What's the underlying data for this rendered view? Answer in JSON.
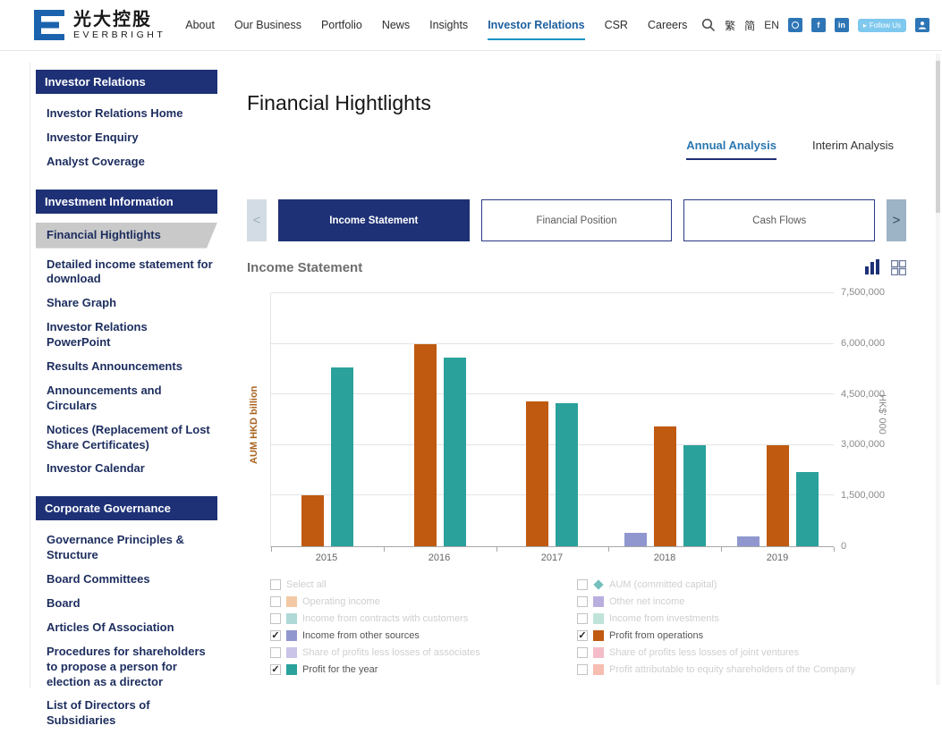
{
  "header": {
    "logo": {
      "cn": "光大控股",
      "en": "EVERBRIGHT"
    },
    "nav": [
      {
        "label": "About",
        "active": false
      },
      {
        "label": "Our Business",
        "active": false
      },
      {
        "label": "Portfolio",
        "active": false
      },
      {
        "label": "News",
        "active": false
      },
      {
        "label": "Insights",
        "active": false
      },
      {
        "label": "Investor Relations",
        "active": true
      },
      {
        "label": "CSR",
        "active": false
      },
      {
        "label": "Careers",
        "active": false
      }
    ],
    "lang": [
      "繁",
      "简",
      "EN"
    ],
    "follow_us": "Follow Us",
    "icons": [
      "search-icon",
      "weibo-icon",
      "facebook-icon",
      "linkedin-icon",
      "twitter-bird-icon",
      "user-icon"
    ]
  },
  "sidebar": {
    "sections": [
      {
        "title": "Investor Relations",
        "items": [
          {
            "label": "Investor Relations Home",
            "active": false
          },
          {
            "label": "Investor Enquiry",
            "active": false
          },
          {
            "label": "Analyst Coverage",
            "active": false
          }
        ]
      },
      {
        "title": "Investment Information",
        "items": [
          {
            "label": "Financial Hightlights",
            "active": true
          },
          {
            "label": "Detailed income statement for download",
            "active": false
          },
          {
            "label": "Share Graph",
            "active": false
          },
          {
            "label": "Investor Relations PowerPoint",
            "active": false
          },
          {
            "label": "Results Announcements",
            "active": false
          },
          {
            "label": "Announcements and Circulars",
            "active": false
          },
          {
            "label": "Notices (Replacement of Lost Share Certificates)",
            "active": false
          },
          {
            "label": "Investor Calendar",
            "active": false
          }
        ]
      },
      {
        "title": "Corporate Governance",
        "items": [
          {
            "label": "Governance Principles & Structure",
            "active": false
          },
          {
            "label": "Board Committees",
            "active": false
          },
          {
            "label": "Board",
            "active": false
          },
          {
            "label": "Articles Of Association",
            "active": false
          },
          {
            "label": "Procedures for shareholders to propose a person for election as a director",
            "active": false
          },
          {
            "label": "List of Directors of Subsidiaries",
            "active": false
          }
        ]
      }
    ]
  },
  "main": {
    "page_title": "Financial Hightlights",
    "analysis_tabs": [
      {
        "label": "Annual Analysis",
        "active": true
      },
      {
        "label": "Interim Analysis",
        "active": false
      }
    ],
    "statement_tabs": [
      {
        "label": "Income Statement",
        "active": true
      },
      {
        "label": "Financial Position",
        "active": false
      },
      {
        "label": "Cash Flows",
        "active": false
      }
    ],
    "section_title": "Income Statement",
    "carousel": {
      "prev": "<",
      "next": ">"
    },
    "colors": {
      "navy": "#1e3176",
      "orange": "#bf5a10",
      "teal": "#2ba19c",
      "purple": "#9097cf",
      "active_link": "#1d5f9e",
      "underline": "#1794c5"
    }
  },
  "chart_data": {
    "type": "bar",
    "categories": [
      "2015",
      "2016",
      "2017",
      "2018",
      "2019"
    ],
    "series": [
      {
        "name": "Income from other sources",
        "color": "#9097cf",
        "values": [
          0,
          0,
          0,
          400000,
          300000
        ]
      },
      {
        "name": "Profit from operations",
        "color": "#bf5a10",
        "values": [
          1500000,
          6000000,
          4300000,
          3550000,
          3000000
        ]
      },
      {
        "name": "Profit for the year",
        "color": "#2ba19c",
        "values": [
          5300000,
          5600000,
          4250000,
          3000000,
          2200000
        ]
      }
    ],
    "ylabel_left": "AUM HKD billion",
    "ylabel_right": "HK$' 000",
    "ymax": 7500000,
    "yticks": [
      {
        "value": 0,
        "label": "0"
      },
      {
        "value": 1500000,
        "label": "1,500,000"
      },
      {
        "value": 3000000,
        "label": "3,000,000"
      },
      {
        "value": 4500000,
        "label": "4,500,000"
      },
      {
        "value": 6000000,
        "label": "6,000,000"
      },
      {
        "value": 7500000,
        "label": "7,500,000"
      }
    ],
    "grid": true,
    "legend_position": "bottom"
  },
  "legend": {
    "left": [
      {
        "label": "Select all",
        "checked": false,
        "swatch": null
      },
      {
        "label": "Operating income",
        "checked": false,
        "swatch": "#f2c9a4"
      },
      {
        "label": "Income from contracts with customers",
        "checked": false,
        "swatch": "#aed9d6"
      },
      {
        "label": "Income from other sources",
        "checked": true,
        "swatch": "#9097cf"
      },
      {
        "label": "Share of profits less losses of associates",
        "checked": false,
        "swatch": "#c9c4e8"
      },
      {
        "label": "Profit for the year",
        "checked": true,
        "swatch": "#2ba19c"
      }
    ],
    "right": [
      {
        "label": "AUM (committed capital)",
        "checked": false,
        "swatch": "#74c0bc",
        "marker": "diamond"
      },
      {
        "label": "Other net income",
        "checked": false,
        "swatch": "#b9aede"
      },
      {
        "label": "Income from investments",
        "checked": false,
        "swatch": "#bfe3d9"
      },
      {
        "label": "Profit from operations",
        "checked": true,
        "swatch": "#bf5a10"
      },
      {
        "label": "Share of profits less losses of joint ventures",
        "checked": false,
        "swatch": "#f4bcc8"
      },
      {
        "label": "Profit attributable to equity shareholders of the Company",
        "checked": false,
        "swatch": "#f6bdb0"
      }
    ]
  }
}
